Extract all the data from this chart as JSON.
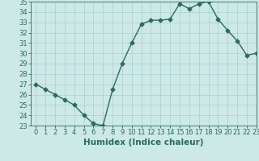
{
  "x": [
    0,
    1,
    2,
    3,
    4,
    5,
    6,
    7,
    8,
    9,
    10,
    11,
    12,
    13,
    14,
    15,
    16,
    17,
    18,
    19,
    20,
    21,
    22,
    23
  ],
  "y": [
    27,
    26.5,
    26,
    25.5,
    25,
    24,
    23.2,
    23,
    26.5,
    29,
    31,
    32.8,
    33.2,
    33.2,
    33.3,
    34.8,
    34.3,
    34.8,
    35,
    33.3,
    32.2,
    31.2,
    29.8,
    30
  ],
  "line_color": "#2d6b5e",
  "marker": "D",
  "marker_size": 2.5,
  "bg_color": "#cce9e8",
  "grid_color": "#aacfce",
  "xlabel": "Humidex (Indice chaleur)",
  "xlabel_fontsize": 7.5,
  "ylim": [
    23,
    35
  ],
  "xlim": [
    -0.5,
    23
  ],
  "yticks": [
    23,
    24,
    25,
    26,
    27,
    28,
    29,
    30,
    31,
    32,
    33,
    34,
    35
  ],
  "xticks": [
    0,
    1,
    2,
    3,
    4,
    5,
    6,
    7,
    8,
    9,
    10,
    11,
    12,
    13,
    14,
    15,
    16,
    17,
    18,
    19,
    20,
    21,
    22,
    23
  ],
  "tick_fontsize": 6,
  "line_width": 1.0
}
